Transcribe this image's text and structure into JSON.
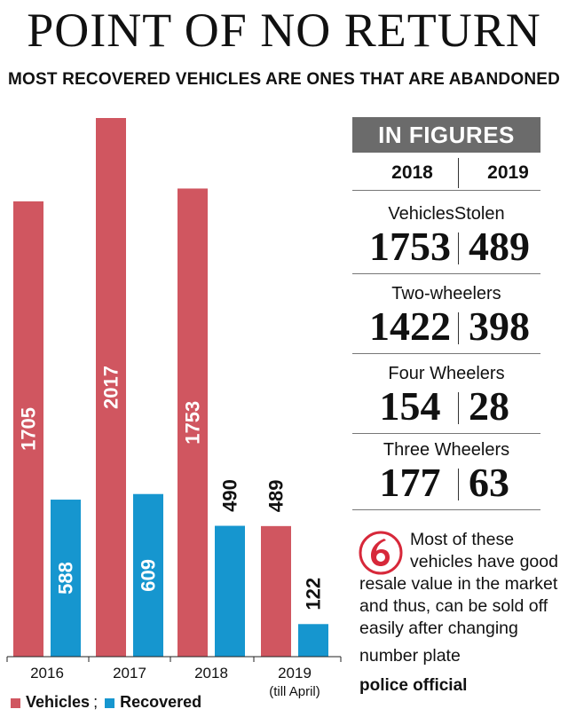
{
  "title": "POINT OF NO RETURN",
  "subtitle": "MOST RECOVERED VEHICLES ARE ONES THAT ARE ABANDONED",
  "colors": {
    "vehicles": "#d05660",
    "recovered": "#1696cf",
    "panel_header": "#6b6b6b"
  },
  "chart_data": {
    "type": "bar",
    "categories": [
      "2016",
      "2017",
      "2018",
      "2019"
    ],
    "category_sublabels": [
      "",
      "",
      "",
      "(till April)"
    ],
    "series": [
      {
        "name": "Vehicles",
        "values": [
          1705,
          2017,
          1753,
          489
        ]
      },
      {
        "name": "Recovered",
        "values": [
          588,
          609,
          490,
          122
        ]
      }
    ],
    "ylim": [
      0,
      2017
    ],
    "grid": false,
    "legend_position": "bottom-left"
  },
  "legend": {
    "separator": ";"
  },
  "panel": {
    "header": "IN FIGURES",
    "years": [
      "2018",
      "2019"
    ],
    "rows": [
      {
        "label": "VehiclesStolen",
        "v2018": "1753",
        "v2019": "489"
      },
      {
        "label": "Two-wheelers",
        "v2018": "1422",
        "v2019": "398"
      },
      {
        "label": "Four Wheelers",
        "v2018": "154",
        "v2019": "28"
      },
      {
        "label": "Three Wheelers",
        "v2018": "177",
        "v2019": "63"
      }
    ]
  },
  "note": {
    "icon": "quote-mark-icon",
    "line1": "Most of these",
    "line2": "vehicles have good",
    "line3": "resale value in the market",
    "line4": "and thus, can be sold off",
    "line5": "easily after changing",
    "line6": "number plate",
    "source": "police official"
  }
}
